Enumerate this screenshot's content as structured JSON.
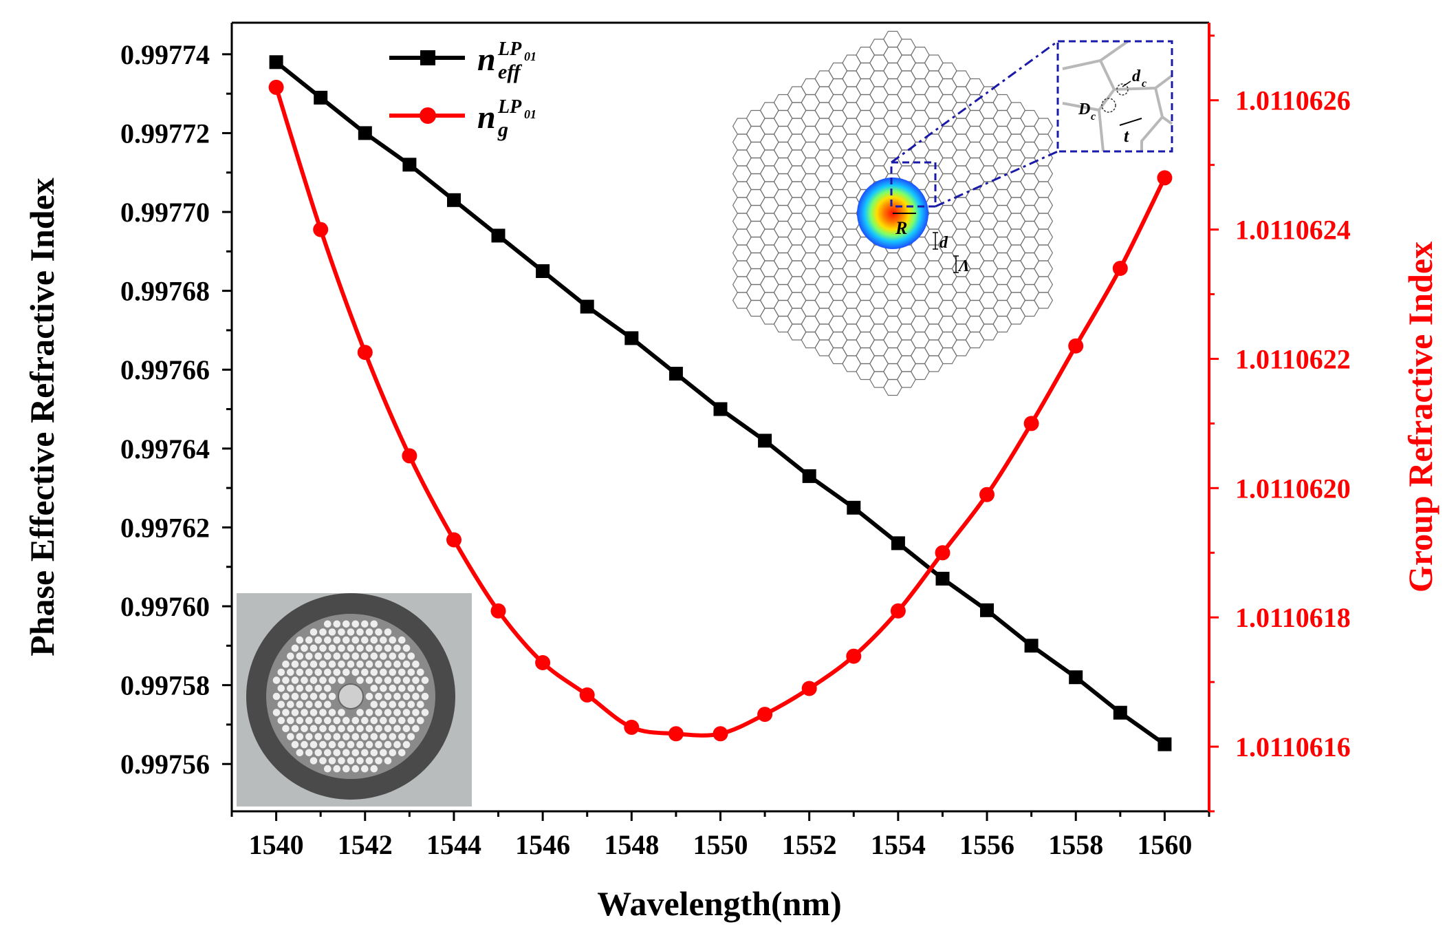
{
  "chart_data": {
    "type": "line",
    "title": "",
    "xlabel": "Wavelength(nm)",
    "ylabel_left": "Phase Effective Refractive Index",
    "ylabel_right": "Group Refractive Index",
    "xlim": [
      1539,
      1561
    ],
    "ylim_left": [
      0.997548,
      0.997748
    ],
    "ylim_right": [
      1.0110615,
      1.01106272
    ],
    "x_ticks": [
      1540,
      1542,
      1544,
      1546,
      1548,
      1550,
      1552,
      1554,
      1556,
      1558,
      1560
    ],
    "x_tick_labels": [
      "1540",
      "1542",
      "1544",
      "1546",
      "1548",
      "1550",
      "1552",
      "1554",
      "1556",
      "1558",
      "1560"
    ],
    "y_left_ticks": [
      0.99756,
      0.99758,
      0.9976,
      0.99762,
      0.99764,
      0.99766,
      0.99768,
      0.9977,
      0.99772,
      0.99774
    ],
    "y_left_tick_labels": [
      "0.99756",
      "0.99758",
      "0.99760",
      "0.99762",
      "0.99764",
      "0.99766",
      "0.99768",
      "0.99770",
      "0.99772",
      "0.99774"
    ],
    "y_right_ticks": [
      1.0110616,
      1.0110618,
      1.011062,
      1.0110622,
      1.0110624,
      1.0110626
    ],
    "y_right_tick_labels": [
      "1.0110616",
      "1.0110618",
      "1.0110620",
      "1.0110622",
      "1.0110624",
      "1.0110626"
    ],
    "x": [
      1540,
      1541,
      1542,
      1543,
      1544,
      1545,
      1546,
      1547,
      1548,
      1549,
      1550,
      1551,
      1552,
      1553,
      1554,
      1555,
      1556,
      1557,
      1558,
      1559,
      1560
    ],
    "series": [
      {
        "name": "n_eff^LP01",
        "axis": "left",
        "color": "#000000",
        "marker": "square",
        "values": [
          0.997738,
          0.997729,
          0.99772,
          0.997712,
          0.997703,
          0.997694,
          0.997685,
          0.997676,
          0.997668,
          0.997659,
          0.99765,
          0.997642,
          0.997633,
          0.997625,
          0.997616,
          0.997607,
          0.997599,
          0.99759,
          0.997582,
          0.997573,
          0.997565
        ]
      },
      {
        "name": "n_g^LP01",
        "axis": "right",
        "color": "#ff0000",
        "marker": "circle",
        "values": [
          1.01106262,
          1.0110624,
          1.01106221,
          1.01106205,
          1.01106192,
          1.01106181,
          1.01106173,
          1.01106168,
          1.01106163,
          1.01106162,
          1.01106162,
          1.01106165,
          1.01106169,
          1.01106174,
          1.01106181,
          1.0110619,
          1.01106199,
          1.0110621,
          1.01106222,
          1.01106234,
          1.01106248
        ]
      }
    ],
    "legend": {
      "placement": "top-left",
      "entries": [
        {
          "base": "n",
          "sub": "eff",
          "sup": "LP",
          "sup_sub": "01"
        },
        {
          "base": "n",
          "sub": "g",
          "sup": "LP",
          "sup_sub": "01"
        }
      ]
    },
    "inset_labels": {
      "R": "R",
      "d": "d",
      "Lambda": "Λ",
      "D": "D",
      "c": "c",
      "t": "t"
    },
    "colors": {
      "left_axis": "#000000",
      "right_axis": "#ff0000",
      "inset_box": "#1a1aa8"
    }
  }
}
